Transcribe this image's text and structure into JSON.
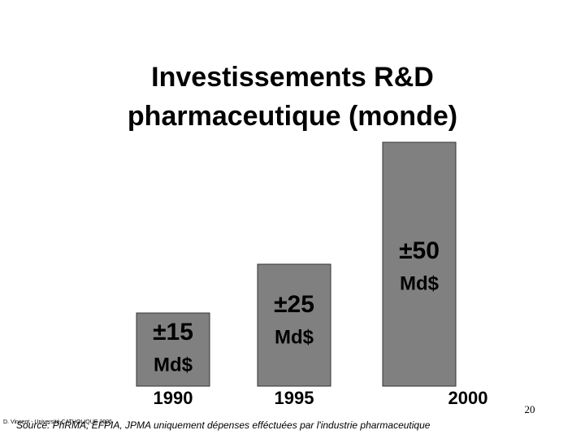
{
  "chart_data": {
    "type": "bar",
    "title": [
      "Investissements R&D",
      "pharmaceutique (monde)"
    ],
    "categories": [
      "1990",
      "1995",
      "2000"
    ],
    "values": [
      15,
      25,
      50
    ],
    "value_labels": [
      "±15",
      "±25",
      "±50"
    ],
    "unit": "Md$",
    "color": "#808080",
    "source": "Source: PhRMA, EFPIA, JPMA uniquement dépenses efféctuées par l'industrie pharmaceutique",
    "author": "D. Vincent - Université CATHOLIQUE 2005",
    "page_number": "20"
  }
}
